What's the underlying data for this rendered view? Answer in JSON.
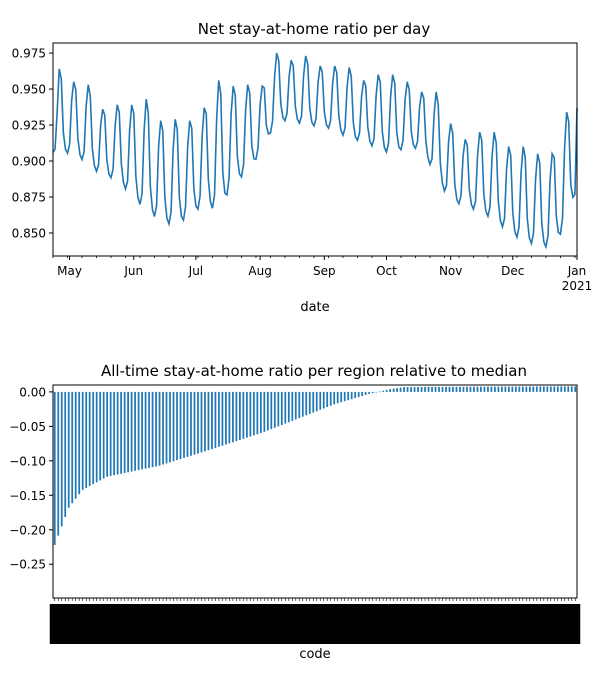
{
  "chart_data": [
    {
      "type": "line",
      "title": "Net stay-at-home ratio per day",
      "xlabel": "date",
      "ylabel": "",
      "x_start": "2020-04-23",
      "x_end": "2021-01-01",
      "ylim": [
        0.834,
        0.982
      ],
      "yticks": [
        0.85,
        0.875,
        0.9,
        0.925,
        0.95,
        0.975
      ],
      "ytick_labels": [
        "0.850",
        "0.875",
        "0.900",
        "0.925",
        "0.950",
        "0.975"
      ],
      "xticks": [
        {
          "date": "2020-05-01",
          "label": "May"
        },
        {
          "date": "2020-06-01",
          "label": "Jun"
        },
        {
          "date": "2020-07-01",
          "label": "Jul"
        },
        {
          "date": "2020-08-01",
          "label": "Aug"
        },
        {
          "date": "2020-09-01",
          "label": "Sep"
        },
        {
          "date": "2020-10-01",
          "label": "Oct"
        },
        {
          "date": "2020-11-01",
          "label": "Nov"
        },
        {
          "date": "2020-12-01",
          "label": "Dec"
        },
        {
          "date": "2021-01-01",
          "label": "Jan",
          "sublabel": "2021"
        }
      ],
      "color": "#1f77b4",
      "weekly_anchors": [
        {
          "date": "2020-04-23",
          "low": 0.906,
          "high": 0.906
        },
        {
          "date": "2020-04-26",
          "low": 0.906,
          "high": 0.964
        },
        {
          "date": "2020-05-03",
          "low": 0.905,
          "high": 0.955
        },
        {
          "date": "2020-05-10",
          "low": 0.898,
          "high": 0.953
        },
        {
          "date": "2020-05-17",
          "low": 0.889,
          "high": 0.936
        },
        {
          "date": "2020-05-24",
          "low": 0.888,
          "high": 0.939
        },
        {
          "date": "2020-05-31",
          "low": 0.875,
          "high": 0.939
        },
        {
          "date": "2020-06-07",
          "low": 0.866,
          "high": 0.943
        },
        {
          "date": "2020-06-14",
          "low": 0.858,
          "high": 0.928
        },
        {
          "date": "2020-06-21",
          "low": 0.855,
          "high": 0.929
        },
        {
          "date": "2020-06-28",
          "low": 0.862,
          "high": 0.928
        },
        {
          "date": "2020-07-05",
          "low": 0.87,
          "high": 0.937
        },
        {
          "date": "2020-07-12",
          "low": 0.865,
          "high": 0.956
        },
        {
          "date": "2020-07-19",
          "low": 0.885,
          "high": 0.952
        },
        {
          "date": "2020-07-26",
          "low": 0.892,
          "high": 0.953
        },
        {
          "date": "2020-08-02",
          "low": 0.908,
          "high": 0.952
        },
        {
          "date": "2020-08-09",
          "low": 0.928,
          "high": 0.975
        },
        {
          "date": "2020-08-16",
          "low": 0.928,
          "high": 0.97
        },
        {
          "date": "2020-08-23",
          "low": 0.925,
          "high": 0.973
        },
        {
          "date": "2020-08-30",
          "low": 0.924,
          "high": 0.966
        },
        {
          "date": "2020-09-06",
          "low": 0.922,
          "high": 0.966
        },
        {
          "date": "2020-09-13",
          "low": 0.915,
          "high": 0.965
        },
        {
          "date": "2020-09-20",
          "low": 0.914,
          "high": 0.956
        },
        {
          "date": "2020-09-27",
          "low": 0.908,
          "high": 0.96
        },
        {
          "date": "2020-10-04",
          "low": 0.905,
          "high": 0.96
        },
        {
          "date": "2020-10-11",
          "low": 0.91,
          "high": 0.955
        },
        {
          "date": "2020-10-18",
          "low": 0.908,
          "high": 0.948
        },
        {
          "date": "2020-10-25",
          "low": 0.89,
          "high": 0.948
        },
        {
          "date": "2020-11-01",
          "low": 0.871,
          "high": 0.926
        },
        {
          "date": "2020-11-08",
          "low": 0.87,
          "high": 0.915
        },
        {
          "date": "2020-11-15",
          "low": 0.864,
          "high": 0.92
        },
        {
          "date": "2020-11-22",
          "low": 0.86,
          "high": 0.92
        },
        {
          "date": "2020-11-29",
          "low": 0.85,
          "high": 0.91
        },
        {
          "date": "2020-12-06",
          "low": 0.845,
          "high": 0.91
        },
        {
          "date": "2020-12-13",
          "low": 0.841,
          "high": 0.905
        },
        {
          "date": "2020-12-20",
          "low": 0.84,
          "high": 0.905
        },
        {
          "date": "2020-12-27",
          "low": 0.856,
          "high": 0.934
        },
        {
          "date": "2021-01-01",
          "low": 0.882,
          "high": 0.937
        }
      ]
    },
    {
      "type": "bar",
      "title": "All-time stay-at-home ratio per region relative to median",
      "xlabel": "code",
      "ylabel": "",
      "ylim": [
        -0.299,
        0.01
      ],
      "yticks": [
        0.0,
        -0.05,
        -0.1,
        -0.15,
        -0.2,
        -0.25
      ],
      "ytick_labels": [
        "0.00",
        "−0.05",
        "−0.10",
        "−0.15",
        "−0.20",
        "−0.25"
      ],
      "color": "#1f77b4",
      "n_categories": 150,
      "category_labels_note": "region codes rotated 90°, overlapping and illegible",
      "sorted_values_profile": [
        {
          "rank": 0,
          "value": -0.222
        },
        {
          "rank": 2,
          "value": -0.195
        },
        {
          "rank": 4,
          "value": -0.168
        },
        {
          "rank": 8,
          "value": -0.142
        },
        {
          "rank": 15,
          "value": -0.123
        },
        {
          "rank": 30,
          "value": -0.107
        },
        {
          "rank": 45,
          "value": -0.083
        },
        {
          "rank": 60,
          "value": -0.058
        },
        {
          "rank": 70,
          "value": -0.038
        },
        {
          "rank": 80,
          "value": -0.018
        },
        {
          "rank": 90,
          "value": -0.003
        },
        {
          "rank": 96,
          "value": 0.004
        },
        {
          "rank": 100,
          "value": 0.007
        },
        {
          "rank": 149,
          "value": 0.008
        }
      ]
    }
  ]
}
